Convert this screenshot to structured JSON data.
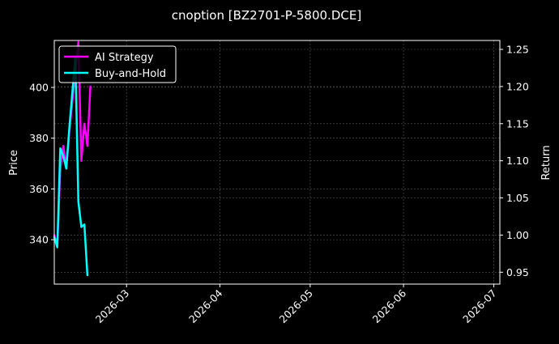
{
  "chart_data": {
    "type": "line",
    "title": "cnoption [BZ2701-P-5800.DCE]",
    "xlabel": "",
    "ylabel_left": "Price",
    "ylabel_right": "Return",
    "x_range": [
      "2026-02-05",
      "2026-07-03"
    ],
    "y_left_range": [
      322.5,
      418.5
    ],
    "y_right_range": [
      0.934,
      1.262
    ],
    "x_ticks": [
      "2026-03",
      "2026-04",
      "2026-05",
      "2026-06",
      "2026-07"
    ],
    "y_left_ticks": [
      340,
      360,
      380,
      400
    ],
    "y_right_ticks": [
      0.95,
      1.0,
      1.05,
      1.1,
      1.15,
      1.2,
      1.25
    ],
    "y_right_tick_labels": [
      "0.95",
      "1.00",
      "1.05",
      "1.10",
      "1.15",
      "1.20",
      "1.25"
    ],
    "grid": true,
    "legend_position": "top-left",
    "series": [
      {
        "name": "AI Strategy",
        "color": "#ff00ff",
        "axis": "right",
        "points": [
          [
            "2026-02-05",
            1.0
          ],
          [
            "2026-02-06",
            0.985
          ],
          [
            "2026-02-07",
            1.09
          ],
          [
            "2026-02-08",
            1.12
          ],
          [
            "2026-02-09",
            1.09
          ],
          [
            "2026-02-10",
            1.14
          ],
          [
            "2026-02-11",
            1.18
          ],
          [
            "2026-02-12",
            1.22
          ],
          [
            "2026-02-13",
            1.26
          ],
          [
            "2026-02-14",
            1.1
          ],
          [
            "2026-02-15",
            1.15
          ],
          [
            "2026-02-16",
            1.12
          ],
          [
            "2026-02-17",
            1.2
          ]
        ]
      },
      {
        "name": "Buy-and-Hold",
        "color": "#00ffff",
        "axis": "left",
        "points": [
          [
            "2026-02-05",
            341
          ],
          [
            "2026-02-06",
            337
          ],
          [
            "2026-02-07",
            376
          ],
          [
            "2026-02-08",
            373
          ],
          [
            "2026-02-09",
            368
          ],
          [
            "2026-02-10",
            384
          ],
          [
            "2026-02-11",
            398
          ],
          [
            "2026-02-12",
            412
          ],
          [
            "2026-02-13",
            355
          ],
          [
            "2026-02-14",
            345
          ],
          [
            "2026-02-15",
            346
          ],
          [
            "2026-02-16",
            326
          ]
        ]
      }
    ]
  }
}
